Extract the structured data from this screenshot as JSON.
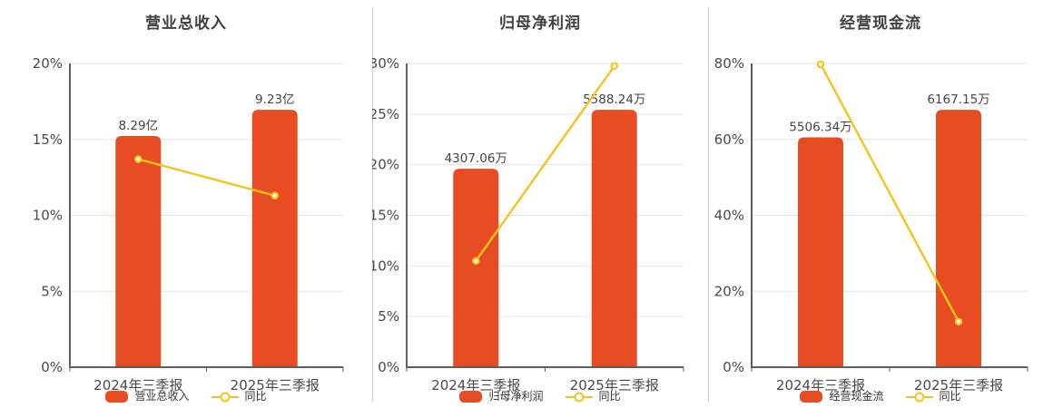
{
  "colors": {
    "bar": "#e84c22",
    "line": "#f3c41c",
    "grid": "#e2e5ec",
    "axis": "#5c6066",
    "tick_text": "#4a4a4a",
    "value_label_text": "#444444",
    "title_text": "#404040",
    "legend_text": "#333333",
    "divider": "#cccccc"
  },
  "chart_data": [
    {
      "type": "bar",
      "title": "营业总收入",
      "categories": [
        "2024年三季报",
        "2025年三季报"
      ],
      "bar_series": {
        "name": "营业总收入",
        "values": [
          8.29,
          9.23
        ],
        "labels": [
          "8.29亿",
          "9.23亿"
        ]
      },
      "line_series": {
        "name": "同比",
        "values_pct": [
          13.7,
          11.3
        ]
      },
      "ylim": [
        0,
        20
      ],
      "ytick_step": 5,
      "yticklabels": [
        "0%",
        "5%",
        "10%",
        "15%",
        "20%"
      ],
      "grid": true,
      "legend_position": "bottom"
    },
    {
      "type": "bar",
      "title": "归母净利润",
      "categories": [
        "2024年三季报",
        "2025年三季报"
      ],
      "bar_series": {
        "name": "归母净利润",
        "values": [
          4307.06,
          5588.24
        ],
        "labels": [
          "4307.06万",
          "5588.24万"
        ]
      },
      "line_series": {
        "name": "同比",
        "values_pct": [
          10.5,
          29.75
        ]
      },
      "ylim": [
        0,
        30
      ],
      "ytick_step": 5,
      "yticklabels": [
        "0%",
        "5%",
        "10%",
        "15%",
        "20%",
        "25%",
        "30%"
      ],
      "grid": true,
      "legend_position": "bottom"
    },
    {
      "type": "bar",
      "title": "经营现金流",
      "categories": [
        "2024年三季报",
        "2025年三季报"
      ],
      "bar_series": {
        "name": "经营现金流",
        "values": [
          5506.34,
          6167.15
        ],
        "labels": [
          "5506.34万",
          "6167.15万"
        ]
      },
      "line_series": {
        "name": "同比",
        "values_pct": [
          79.8,
          12.0
        ]
      },
      "ylim": [
        0,
        80
      ],
      "ytick_step": 20,
      "yticklabels": [
        "0%",
        "20%",
        "40%",
        "60%",
        "80%"
      ],
      "grid": true,
      "legend_position": "bottom"
    }
  ]
}
